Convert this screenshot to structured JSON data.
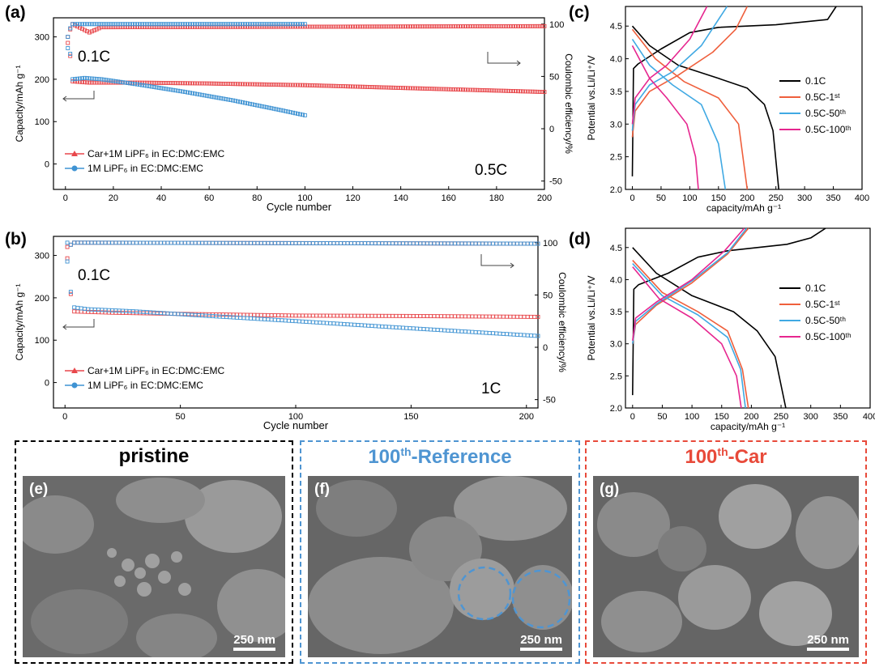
{
  "colors": {
    "red": "#e8474b",
    "blue": "#3f93d3",
    "black": "#000000",
    "magenta": "#e6268f",
    "orange": "#ef5f3c",
    "sky": "#40a9e3",
    "ref": "#4f95d2",
    "car": "#e84a3a"
  },
  "panels": [
    {
      "label": "(a)",
      "type": "line",
      "ylabel": "Capacity/mAh g⁻¹",
      "y2label": "Coulombic efficiency/%",
      "xlabel": "Cycle number",
      "xticks": [
        0,
        20,
        40,
        60,
        80,
        100,
        120,
        140,
        160,
        180,
        200
      ],
      "yticks": [
        0,
        100,
        200,
        300
      ],
      "y2ticks": [
        -50,
        0,
        50,
        100
      ],
      "xlim": [
        -5,
        200
      ],
      "ylim": [
        -60,
        345
      ],
      "y2lim": [
        -58,
        106
      ],
      "rate_low": "0.1C",
      "rate_high": "0.5C",
      "series": [
        {
          "name": "Car+1M LiPF₆ in EC:DMC:EMC",
          "color": "red",
          "cap": [
            [
              1,
              300
            ],
            [
              2,
              255
            ],
            [
              3,
              195
            ],
            [
              10,
              192
            ],
            [
              30,
              192
            ],
            [
              60,
              190
            ],
            [
              100,
              186
            ],
            [
              150,
              178
            ],
            [
              200,
              170
            ]
          ],
          "ce": [
            [
              1,
              82
            ],
            [
              2,
              95
            ],
            [
              3,
              100
            ],
            [
              10,
              92
            ],
            [
              15,
              97
            ],
            [
              200,
              98
            ]
          ]
        },
        {
          "name": "1M LiPF₆ in EC:DMC:EMC",
          "color": "blue",
          "cap": [
            [
              1,
              300
            ],
            [
              2,
              260
            ],
            [
              3,
              200
            ],
            [
              8,
              203
            ],
            [
              15,
              200
            ],
            [
              30,
              188
            ],
            [
              50,
              170
            ],
            [
              70,
              150
            ],
            [
              90,
              127
            ],
            [
              100,
              115
            ]
          ],
          "ce": [
            [
              1,
              77
            ],
            [
              2,
              96
            ],
            [
              3,
              100
            ],
            [
              100,
              100
            ]
          ]
        }
      ]
    },
    {
      "label": "(b)",
      "type": "line",
      "ylabel": "Capacity/mAh g⁻¹",
      "y2label": "Coulombic efficiency/%",
      "xlabel": "Cycle number",
      "xticks": [
        0,
        50,
        100,
        150,
        200
      ],
      "yticks": [
        0,
        100,
        200,
        300
      ],
      "y2ticks": [
        -50,
        0,
        50,
        100
      ],
      "xlim": [
        -5,
        205
      ],
      "ylim": [
        -60,
        345
      ],
      "y2lim": [
        -58,
        106
      ],
      "rate_low": "0.1C",
      "rate_high": "1C",
      "series": [
        {
          "name": "Car+1M LiPF₆ in EC:DMC:EMC",
          "color": "red",
          "cap": [
            [
              1,
              320
            ],
            [
              2,
              250
            ],
            [
              3,
              168
            ],
            [
              20,
              165
            ],
            [
              50,
              162
            ],
            [
              100,
              158
            ],
            [
              150,
              157
            ],
            [
              205,
              155
            ]
          ],
          "ce": [
            [
              1,
              85
            ],
            [
              2,
              96
            ],
            [
              3,
              100
            ],
            [
              205,
              99
            ]
          ]
        },
        {
          "name": "1M LiPF₆ in EC:DMC:EMC",
          "color": "blue",
          "cap": [
            [
              1,
              330
            ],
            [
              2,
              250
            ],
            [
              3,
              178
            ],
            [
              10,
              173
            ],
            [
              30,
              168
            ],
            [
              60,
              158
            ],
            [
              100,
              145
            ],
            [
              150,
              128
            ],
            [
              205,
              110
            ]
          ],
          "ce": [
            [
              1,
              82
            ],
            [
              2,
              96
            ],
            [
              3,
              100
            ],
            [
              205,
              99
            ]
          ]
        }
      ]
    },
    {
      "label": "(c)",
      "type": "line",
      "ylabel": "Potential vs.Li/Li⁺/V",
      "xlabel": "capacity/mAh g⁻¹",
      "xticks": [
        0,
        50,
        100,
        150,
        200,
        250,
        300,
        350,
        400
      ],
      "yticks": [
        2.0,
        2.5,
        3.0,
        3.5,
        4.0,
        4.5
      ],
      "xlim": [
        -12,
        400
      ],
      "ylim": [
        2.0,
        4.8
      ],
      "series": [
        {
          "name": "0.1C",
          "color": "black",
          "charge": [
            [
              0,
              2.2
            ],
            [
              2,
              3.85
            ],
            [
              10,
              3.92
            ],
            [
              50,
              4.15
            ],
            [
              100,
              4.4
            ],
            [
              150,
              4.48
            ],
            [
              250,
              4.52
            ],
            [
              340,
              4.6
            ],
            [
              355,
              4.8
            ]
          ],
          "discharge": [
            [
              0,
              4.5
            ],
            [
              30,
              4.2
            ],
            [
              80,
              3.9
            ],
            [
              150,
              3.7
            ],
            [
              200,
              3.55
            ],
            [
              230,
              3.3
            ],
            [
              245,
              2.9
            ],
            [
              255,
              2.0
            ]
          ]
        },
        {
          "name": "0.5C-1ˢᵗ",
          "color": "orange",
          "charge": [
            [
              0,
              2.8
            ],
            [
              5,
              3.2
            ],
            [
              30,
              3.5
            ],
            [
              80,
              3.75
            ],
            [
              140,
              4.1
            ],
            [
              180,
              4.45
            ],
            [
              200,
              4.8
            ]
          ],
          "discharge": [
            [
              0,
              4.45
            ],
            [
              40,
              4.0
            ],
            [
              90,
              3.65
            ],
            [
              150,
              3.4
            ],
            [
              185,
              3.0
            ],
            [
              200,
              2.0
            ]
          ]
        },
        {
          "name": "0.5C-50ᵗʰ",
          "color": "sky",
          "charge": [
            [
              0,
              2.9
            ],
            [
              5,
              3.3
            ],
            [
              30,
              3.6
            ],
            [
              70,
              3.8
            ],
            [
              120,
              4.2
            ],
            [
              165,
              4.8
            ]
          ],
          "discharge": [
            [
              0,
              4.3
            ],
            [
              30,
              3.9
            ],
            [
              70,
              3.6
            ],
            [
              120,
              3.3
            ],
            [
              150,
              2.7
            ],
            [
              162,
              2.0
            ]
          ]
        },
        {
          "name": "0.5C-100ᵗʰ",
          "color": "magenta",
          "charge": [
            [
              0,
              3.0
            ],
            [
              5,
              3.4
            ],
            [
              30,
              3.7
            ],
            [
              60,
              3.9
            ],
            [
              100,
              4.3
            ],
            [
              130,
              4.8
            ]
          ],
          "discharge": [
            [
              0,
              4.2
            ],
            [
              30,
              3.7
            ],
            [
              60,
              3.4
            ],
            [
              95,
              3.0
            ],
            [
              110,
              2.5
            ],
            [
              115,
              2.0
            ]
          ]
        }
      ]
    },
    {
      "label": "(d)",
      "type": "line",
      "ylabel": "Potential vs.Li/Li⁺/V",
      "xlabel": "capacity/mAh g⁻¹",
      "xticks": [
        0,
        50,
        100,
        150,
        200,
        250,
        300,
        350,
        400
      ],
      "yticks": [
        2.0,
        2.5,
        3.0,
        3.5,
        4.0,
        4.5
      ],
      "xlim": [
        -12,
        400
      ],
      "ylim": [
        2.0,
        4.8
      ],
      "series": [
        {
          "name": "0.1C",
          "color": "black",
          "charge": [
            [
              0,
              2.2
            ],
            [
              2,
              3.85
            ],
            [
              10,
              3.92
            ],
            [
              60,
              4.1
            ],
            [
              110,
              4.35
            ],
            [
              160,
              4.45
            ],
            [
              260,
              4.55
            ],
            [
              300,
              4.65
            ],
            [
              325,
              4.8
            ]
          ],
          "discharge": [
            [
              0,
              4.5
            ],
            [
              40,
              4.1
            ],
            [
              100,
              3.75
            ],
            [
              170,
              3.5
            ],
            [
              210,
              3.2
            ],
            [
              240,
              2.8
            ],
            [
              258,
              2.0
            ]
          ]
        },
        {
          "name": "0.5C-1ˢᵗ",
          "color": "orange",
          "charge": [
            [
              0,
              3.0
            ],
            [
              5,
              3.3
            ],
            [
              40,
              3.6
            ],
            [
              100,
              3.95
            ],
            [
              160,
              4.4
            ],
            [
              195,
              4.8
            ]
          ],
          "discharge": [
            [
              0,
              4.3
            ],
            [
              50,
              3.8
            ],
            [
              110,
              3.5
            ],
            [
              160,
              3.2
            ],
            [
              185,
              2.6
            ],
            [
              195,
              2.0
            ]
          ]
        },
        {
          "name": "0.5C-50ᵗʰ",
          "color": "sky",
          "charge": [
            [
              0,
              3.0
            ],
            [
              5,
              3.35
            ],
            [
              40,
              3.62
            ],
            [
              100,
              3.98
            ],
            [
              160,
              4.42
            ],
            [
              192,
              4.8
            ]
          ],
          "discharge": [
            [
              0,
              4.25
            ],
            [
              50,
              3.75
            ],
            [
              110,
              3.45
            ],
            [
              160,
              3.1
            ],
            [
              182,
              2.6
            ],
            [
              190,
              2.0
            ]
          ]
        },
        {
          "name": "0.5C-100ᵗʰ",
          "color": "magenta",
          "charge": [
            [
              0,
              3.05
            ],
            [
              5,
              3.4
            ],
            [
              40,
              3.65
            ],
            [
              100,
              4.0
            ],
            [
              155,
              4.45
            ],
            [
              188,
              4.8
            ]
          ],
          "discharge": [
            [
              0,
              4.2
            ],
            [
              45,
              3.7
            ],
            [
              100,
              3.4
            ],
            [
              150,
              3.0
            ],
            [
              175,
              2.5
            ],
            [
              183,
              2.0
            ]
          ]
        }
      ]
    }
  ],
  "sem": [
    {
      "label": "(e)",
      "title_main": "pristine",
      "title_sup": "",
      "title_rest": "",
      "scale": "250 nm",
      "titlecolor": "black"
    },
    {
      "label": "(f)",
      "title_main": "100",
      "title_sup": "th",
      "title_rest": "-Reference",
      "scale": "250 nm",
      "titlecolor": "ref"
    },
    {
      "label": "(g)",
      "title_main": "100",
      "title_sup": "th",
      "title_rest": "-Car",
      "scale": "250 nm",
      "titlecolor": "car"
    }
  ]
}
